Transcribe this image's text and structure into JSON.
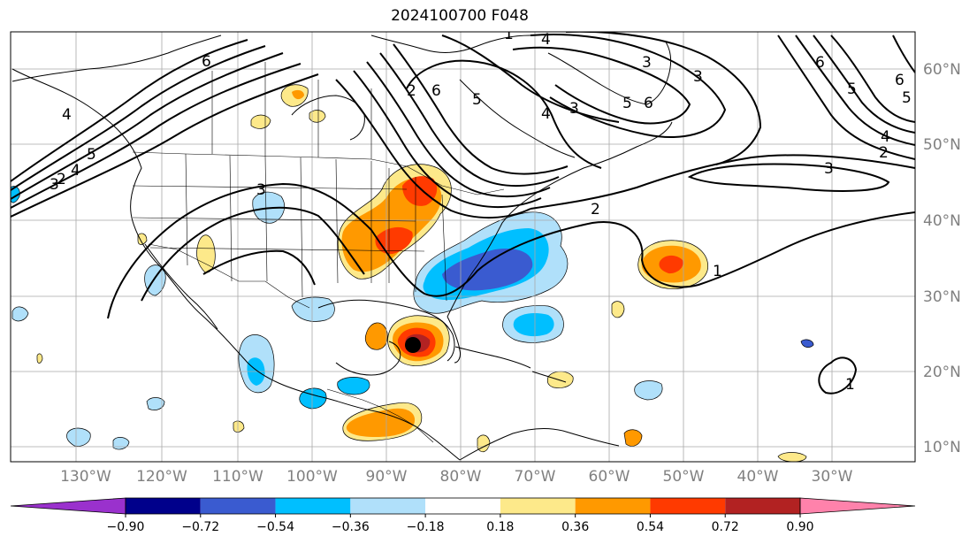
{
  "title": "2024100700 F048",
  "latitude_labels": [
    "60°N",
    "50°N",
    "40°N",
    "30°N",
    "20°N",
    "10°N"
  ],
  "longitude_labels": [
    "130°W",
    "120°W",
    "110°W",
    "100°W",
    "90°W",
    "80°W",
    "70°W",
    "60°W",
    "50°W",
    "40°W",
    "30°W"
  ],
  "contour_labels": [
    "6",
    "5",
    "4",
    "3",
    "2",
    "4",
    "3",
    "2",
    "5",
    "6",
    "6",
    "5",
    "4",
    "3",
    "6",
    "5",
    "4",
    "3",
    "5",
    "6",
    "4",
    "3",
    "2",
    "1",
    "1",
    "3",
    "2",
    "1"
  ],
  "colorbar": {
    "ticks": [
      "−0.90",
      "−0.72",
      "−0.54",
      "−0.36",
      "−0.18",
      "0.18",
      "0.36",
      "0.54",
      "0.72",
      "0.90"
    ],
    "colors": [
      "#9a31cd",
      "#00008b",
      "#3a5bd0",
      "#00bfff",
      "#b0e0fa",
      "#ffffff",
      "#fde98a",
      "#ff9900",
      "#ff3a00",
      "#b22222",
      "#ff82ab"
    ]
  },
  "storm_marker": {
    "lat": 23.5,
    "lon": -86.5
  }
}
